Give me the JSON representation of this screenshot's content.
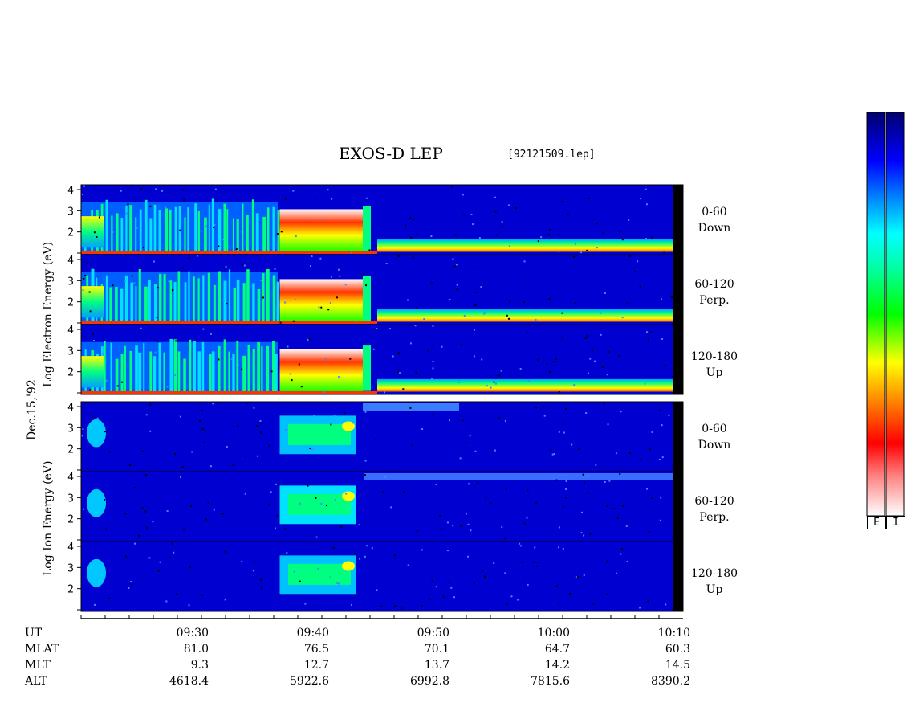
{
  "title": "EXOS-D LEP",
  "filename": "[92121509.lep]",
  "date_label": "Dec.15,'92",
  "electron_axis_label": "Log  Electron  Energy (eV)",
  "ion_axis_label": "Log  Ion  Energy (eV)",
  "channels": [
    {
      "range": "0-60",
      "dir": "Down"
    },
    {
      "range": "60-120",
      "dir": "Perp."
    },
    {
      "range": "120-180",
      "dir": "Up"
    },
    {
      "range": "0-60",
      "dir": "Down"
    },
    {
      "range": "60-120",
      "dir": "Perp."
    },
    {
      "range": "120-180",
      "dir": "Up"
    }
  ],
  "colorbar_labels": [
    "E",
    "I"
  ],
  "colors": {
    "background": "#0000d0",
    "colorbar": [
      "#000060",
      "#0000ff",
      "#00a0ff",
      "#00ffff",
      "#00ff60",
      "#00ff00",
      "#ffff00",
      "#ff8000",
      "#ff0000",
      "#ffffff"
    ]
  },
  "chart_data": {
    "type": "heatmap",
    "title": "EXOS-D LEP",
    "xlabel": "UT",
    "ylabel": "Log Energy (eV)",
    "x_ticks": [
      "09:30",
      "09:40",
      "09:50",
      "10:00",
      "10:10"
    ],
    "y_ticks": [
      "1",
      "2",
      "3",
      "4"
    ],
    "ylim": [
      1,
      4
    ],
    "orbit_table": {
      "rows": [
        {
          "label": "UT",
          "values": [
            "09:30",
            "09:40",
            "09:50",
            "10:00",
            "10:10"
          ]
        },
        {
          "label": "MLAT",
          "values": [
            "81.0",
            "76.5",
            "70.1",
            "64.7",
            "60.3"
          ]
        },
        {
          "label": "MLT",
          "values": [
            "9.3",
            "12.7",
            "13.7",
            "14.2",
            "14.5"
          ]
        },
        {
          "label": "ALT",
          "values": [
            "4618.4",
            "5922.6",
            "6992.8",
            "7815.6",
            "8390.2"
          ]
        }
      ]
    },
    "panels": [
      {
        "species": "Electron",
        "pitch_angle": "0-60",
        "direction": "Down"
      },
      {
        "species": "Electron",
        "pitch_angle": "60-120",
        "direction": "Perp."
      },
      {
        "species": "Electron",
        "pitch_angle": "120-180",
        "direction": "Up"
      },
      {
        "species": "Ion",
        "pitch_angle": "0-60",
        "direction": "Down"
      },
      {
        "species": "Ion",
        "pitch_angle": "60-120",
        "direction": "Perp."
      },
      {
        "species": "Ion",
        "pitch_angle": "120-180",
        "direction": "Up"
      }
    ]
  }
}
